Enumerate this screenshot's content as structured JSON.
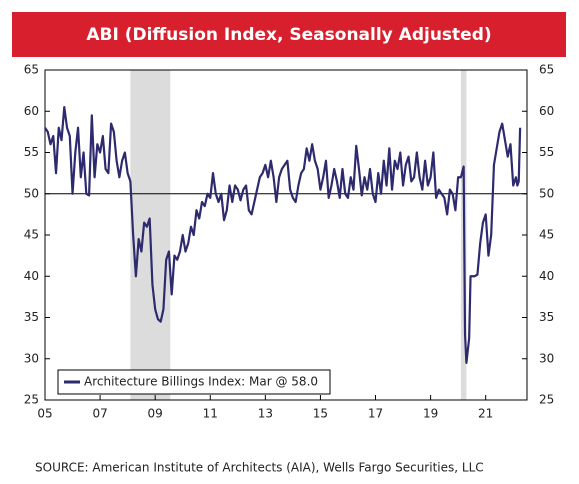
{
  "chart_data": {
    "type": "line",
    "title": "ABI (Diffusion Index, Seasonally Adjusted)",
    "source": "SOURCE: American Institute of Architects (AIA), Wells Fargo Securities, LLC",
    "x": [
      2005.0,
      2005.1,
      2005.2,
      2005.3,
      2005.4,
      2005.5,
      2005.6,
      2005.7,
      2005.8,
      2005.9,
      2006.0,
      2006.1,
      2006.2,
      2006.3,
      2006.4,
      2006.5,
      2006.6,
      2006.7,
      2006.8,
      2006.9,
      2007.0,
      2007.1,
      2007.2,
      2007.3,
      2007.4,
      2007.5,
      2007.6,
      2007.7,
      2007.8,
      2007.9,
      2008.0,
      2008.1,
      2008.2,
      2008.3,
      2008.4,
      2008.5,
      2008.6,
      2008.7,
      2008.8,
      2008.9,
      2009.0,
      2009.1,
      2009.2,
      2009.3,
      2009.4,
      2009.5,
      2009.6,
      2009.7,
      2009.8,
      2009.9,
      2010.0,
      2010.1,
      2010.2,
      2010.3,
      2010.4,
      2010.5,
      2010.6,
      2010.7,
      2010.8,
      2010.9,
      2011.0,
      2011.1,
      2011.2,
      2011.3,
      2011.4,
      2011.5,
      2011.6,
      2011.7,
      2011.8,
      2011.9,
      2012.0,
      2012.1,
      2012.2,
      2012.3,
      2012.4,
      2012.5,
      2012.6,
      2012.7,
      2012.8,
      2012.9,
      2013.0,
      2013.1,
      2013.2,
      2013.3,
      2013.4,
      2013.5,
      2013.6,
      2013.7,
      2013.8,
      2013.9,
      2014.0,
      2014.1,
      2014.2,
      2014.3,
      2014.4,
      2014.5,
      2014.6,
      2014.7,
      2014.8,
      2014.9,
      2015.0,
      2015.1,
      2015.2,
      2015.3,
      2015.4,
      2015.5,
      2015.6,
      2015.7,
      2015.8,
      2015.9,
      2016.0,
      2016.1,
      2016.2,
      2016.3,
      2016.4,
      2016.5,
      2016.6,
      2016.7,
      2016.8,
      2016.9,
      2017.0,
      2017.1,
      2017.2,
      2017.3,
      2017.4,
      2017.5,
      2017.6,
      2017.7,
      2017.8,
      2017.9,
      2018.0,
      2018.1,
      2018.2,
      2018.3,
      2018.4,
      2018.5,
      2018.6,
      2018.7,
      2018.8,
      2018.9,
      2019.0,
      2019.1,
      2019.2,
      2019.3,
      2019.4,
      2019.5,
      2019.6,
      2019.7,
      2019.8,
      2019.9,
      2020.0,
      2020.1,
      2020.2,
      2020.25,
      2020.3,
      2020.4,
      2020.45,
      2020.6,
      2020.7,
      2020.8,
      2020.9,
      2021.0,
      2021.1,
      2021.2,
      2021.3,
      2021.4,
      2021.5,
      2021.6,
      2021.7,
      2021.8,
      2021.9,
      2022.0,
      2022.1,
      2022.15,
      2022.2,
      2022.25
    ],
    "series": [
      {
        "name": "Architecture Billings Index: Mar @ 58.0",
        "color": "#2e2a6e",
        "values": [
          58,
          57.5,
          56,
          57,
          52.5,
          58,
          56.5,
          60.5,
          58,
          57,
          50,
          55,
          58,
          52,
          55,
          50,
          49.8,
          59.5,
          52,
          56,
          55,
          57,
          53,
          52.5,
          58.5,
          57.5,
          54,
          52,
          54,
          55,
          52.5,
          51.5,
          45,
          40,
          44.5,
          43,
          46.5,
          46,
          47,
          39,
          36,
          34.8,
          34.5,
          36,
          42,
          43,
          37.8,
          42.5,
          42,
          43,
          45,
          43,
          44,
          46,
          45,
          48,
          47,
          49,
          48.5,
          50,
          49.5,
          52.5,
          50,
          49,
          50,
          46.8,
          48,
          51,
          49,
          51,
          50.5,
          49.2,
          50.5,
          51,
          48,
          47.5,
          49,
          50.5,
          52,
          52.5,
          53.5,
          52,
          54,
          52,
          49,
          52,
          53,
          53.5,
          54,
          50.5,
          49.5,
          49,
          51,
          52.5,
          53,
          55.5,
          54,
          56,
          54,
          53,
          50.5,
          52,
          54,
          49.5,
          51,
          53,
          51.5,
          49.5,
          53,
          50,
          49.5,
          52,
          50.5,
          55.8,
          53,
          49.8,
          52,
          50.5,
          53,
          50,
          49,
          52.5,
          50,
          54,
          51,
          55.5,
          50.5,
          54,
          53,
          55,
          51,
          53.5,
          54.5,
          51.5,
          52,
          55,
          52,
          50.5,
          54,
          51,
          52,
          55,
          49.5,
          50.5,
          50,
          49.5,
          47.5,
          50.5,
          50,
          48,
          52,
          52,
          53.3,
          33,
          29.5,
          32.5,
          40,
          40,
          40.2,
          44,
          46.5,
          47.5,
          42.5,
          45,
          53.5,
          55.5,
          57.5,
          58.5,
          56.5,
          54.5,
          56,
          51,
          52,
          51,
          51.5,
          58
        ]
      }
    ],
    "recessions": [
      [
        2008.1,
        2009.55
      ],
      [
        2020.1,
        2020.3
      ]
    ],
    "hline": 50,
    "xlim": [
      2005,
      2022.5
    ],
    "xticks": [
      {
        "value": 2005,
        "label": "05"
      },
      {
        "value": 2007,
        "label": "07"
      },
      {
        "value": 2009,
        "label": "09"
      },
      {
        "value": 2011,
        "label": "11"
      },
      {
        "value": 2013,
        "label": "13"
      },
      {
        "value": 2015,
        "label": "15"
      },
      {
        "value": 2017,
        "label": "17"
      },
      {
        "value": 2019,
        "label": "19"
      },
      {
        "value": 2021,
        "label": "21"
      }
    ],
    "ylim": [
      25,
      65
    ],
    "yticks": [
      25,
      30,
      35,
      40,
      45,
      50,
      55,
      60,
      65
    ],
    "y2lim": [
      25,
      65
    ],
    "y2ticks": [
      25,
      30,
      35,
      40,
      45,
      50,
      55,
      60,
      65
    ],
    "legend": "lower-left"
  }
}
